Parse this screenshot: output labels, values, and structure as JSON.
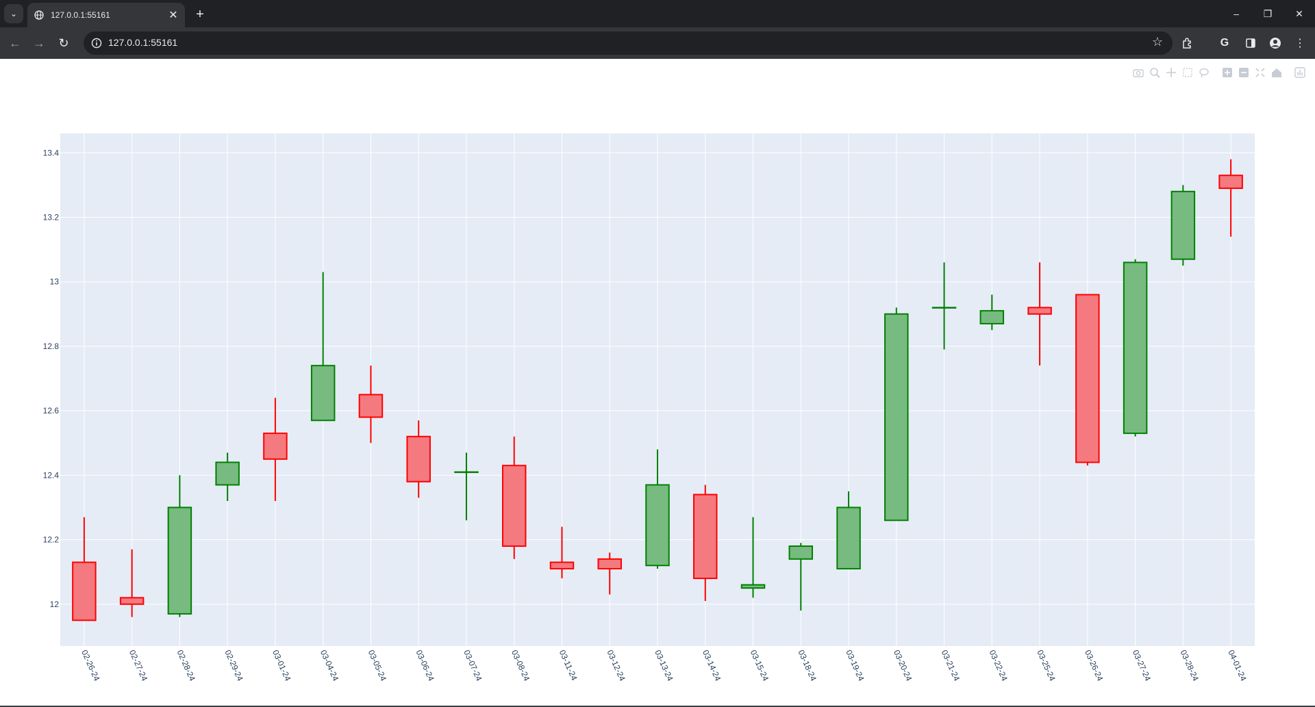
{
  "browser": {
    "tab_title": "127.0.0.1:55161",
    "url": "127.0.0.1:55161",
    "tab_dropdown_icon": "chevron-down-icon",
    "favicon": "globe-icon"
  },
  "colors": {
    "increasing": "#008000",
    "increasing_fill": "#77bb80",
    "decreasing": "#ff0000",
    "decreasing_fill": "#f47a7f",
    "plot_bg": "#e5ecf6",
    "grid": "#ffffff"
  },
  "modebar": {
    "icons": [
      "camera-icon",
      "zoom-icon",
      "pan-icon",
      "box-select-icon",
      "lasso-select-icon",
      "zoom-in-icon",
      "zoom-out-icon",
      "autoscale-icon",
      "reset-axes-icon",
      "plotly-logo-icon"
    ]
  },
  "chart_data": {
    "type": "candlestick",
    "title": "",
    "xlabel": "",
    "ylabel": "",
    "ylim": [
      11.87,
      13.46
    ],
    "yticks": [
      12,
      12.2,
      12.4,
      12.6,
      12.8,
      13,
      13.2,
      13.4
    ],
    "ytick_labels": [
      "12",
      "12.2",
      "12.4",
      "12.6",
      "12.8",
      "13",
      "13.2",
      "13.4"
    ],
    "grid": true,
    "x": [
      "02-26-24",
      "02-27-24",
      "02-28-24",
      "02-29-24",
      "03-01-24",
      "03-04-24",
      "03-05-24",
      "03-06-24",
      "03-07-24",
      "03-08-24",
      "03-11-24",
      "03-12-24",
      "03-13-24",
      "03-14-24",
      "03-15-24",
      "03-18-24",
      "03-19-24",
      "03-20-24",
      "03-21-24",
      "03-22-24",
      "03-25-24",
      "03-26-24",
      "03-27-24",
      "03-28-24",
      "04-01-24"
    ],
    "open": [
      12.13,
      12.02,
      11.97,
      12.37,
      12.53,
      12.57,
      12.65,
      12.52,
      12.41,
      12.43,
      12.13,
      12.14,
      12.12,
      12.34,
      12.05,
      12.14,
      12.11,
      12.26,
      12.92,
      12.87,
      12.92,
      12.96,
      12.53,
      13.07,
      13.33
    ],
    "high": [
      12.27,
      12.17,
      12.4,
      12.47,
      12.64,
      13.03,
      12.74,
      12.57,
      12.47,
      12.52,
      12.24,
      12.16,
      12.48,
      12.37,
      12.27,
      12.19,
      12.35,
      12.92,
      13.06,
      12.96,
      13.06,
      12.96,
      13.07,
      13.3,
      13.38
    ],
    "low": [
      11.95,
      11.96,
      11.96,
      12.32,
      12.32,
      12.57,
      12.5,
      12.33,
      12.26,
      12.14,
      12.08,
      12.03,
      12.11,
      12.01,
      12.02,
      11.98,
      12.11,
      12.26,
      12.79,
      12.85,
      12.74,
      12.43,
      12.52,
      13.05,
      13.14
    ],
    "close": [
      11.95,
      12.0,
      12.3,
      12.44,
      12.45,
      12.74,
      12.58,
      12.38,
      12.41,
      12.18,
      12.11,
      12.11,
      12.37,
      12.08,
      12.06,
      12.18,
      12.3,
      12.9,
      12.92,
      12.91,
      12.9,
      12.44,
      13.06,
      13.28,
      13.29
    ]
  }
}
